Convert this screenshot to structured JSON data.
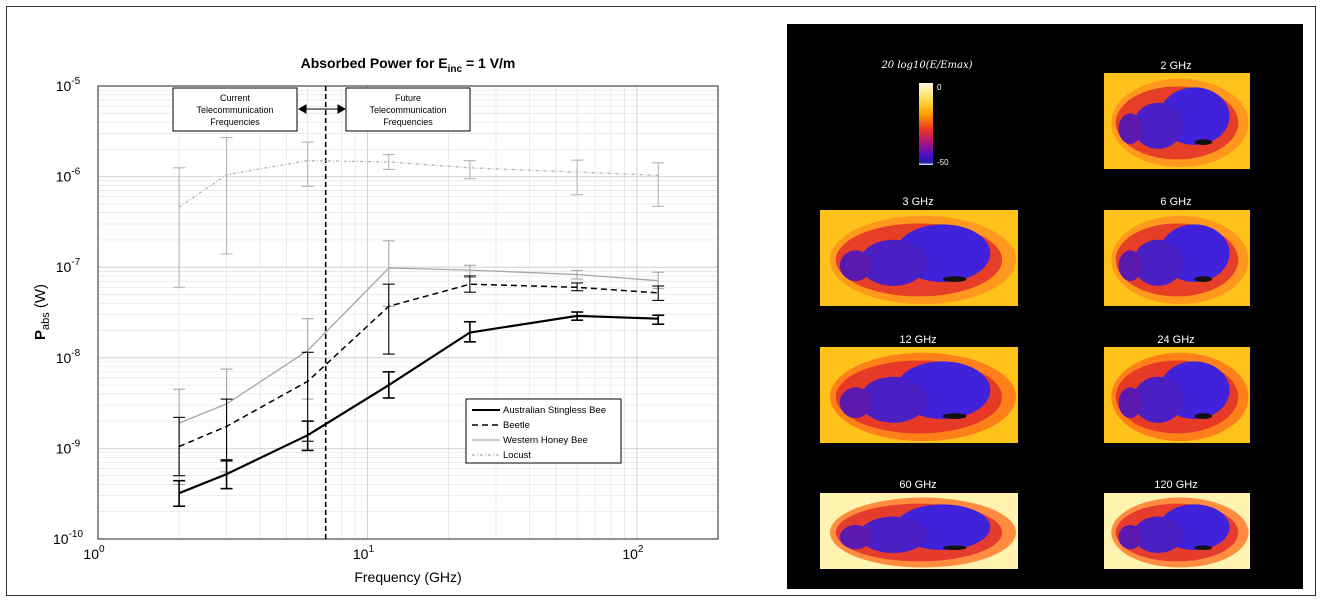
{
  "chart_data": {
    "type": "line",
    "title": "Absorbed Power for E",
    "title_sub": "inc",
    "title_tail": " = 1 V/m",
    "ylabel_main": "P",
    "ylabel_sub": "abs",
    "ylabel_tail": " (W)",
    "xlabel": "Frequency (GHz)",
    "x_scale": "log",
    "y_scale": "log",
    "xlim": [
      1,
      200
    ],
    "ylim": [
      1e-10,
      1e-05
    ],
    "x_ticks": [
      {
        "base": "10",
        "exp": "0",
        "value": 1
      },
      {
        "base": "10",
        "exp": "1",
        "value": 10
      },
      {
        "base": "10",
        "exp": "2",
        "value": 100
      }
    ],
    "y_ticks": [
      {
        "base": "10",
        "exp": "-10",
        "value": 1e-10
      },
      {
        "base": "10",
        "exp": "-9",
        "value": 1e-09
      },
      {
        "base": "10",
        "exp": "-8",
        "value": 1e-08
      },
      {
        "base": "10",
        "exp": "-7",
        "value": 1e-07
      },
      {
        "base": "10",
        "exp": "-6",
        "value": 1e-06
      },
      {
        "base": "10",
        "exp": "-5",
        "value": 1e-05
      }
    ],
    "grid": true,
    "legend_position": "bottom-right",
    "series": [
      {
        "name": "Australian Stingless Bee",
        "color": "#000000",
        "dash": "solid",
        "width": 2.2,
        "x": [
          2,
          3,
          6,
          12,
          24,
          60,
          120
        ],
        "y": [
          3.2e-10,
          5.2e-10,
          1.4e-09,
          5e-09,
          1.9e-08,
          2.9e-08,
          2.7e-08
        ],
        "err_low": [
          2.3e-10,
          3.6e-10,
          9.5e-10,
          3.6e-09,
          1.5e-08,
          2.6e-08,
          2.35e-08
        ],
        "err_high": [
          4.4e-10,
          7.3e-10,
          2e-09,
          7e-09,
          2.5e-08,
          3.2e-08,
          2.95e-08
        ]
      },
      {
        "name": "Beetle",
        "color": "#000000",
        "dash": "6,4",
        "width": 1.5,
        "x": [
          2,
          3,
          6,
          12,
          24,
          60,
          120
        ],
        "y": [
          1.05e-09,
          1.75e-09,
          5.5e-09,
          3.7e-08,
          6.5e-08,
          6e-08,
          5.2e-08
        ],
        "err_low": [
          5e-10,
          7.5e-10,
          1.2e-09,
          1.1e-08,
          5.3e-08,
          5.5e-08,
          4.3e-08
        ],
        "err_high": [
          2.2e-09,
          3.5e-09,
          1.15e-08,
          6.5e-08,
          8e-08,
          6.7e-08,
          6.2e-08
        ]
      },
      {
        "name": "Western Honey Bee",
        "color": "#a6a6a6",
        "dash": "solid",
        "width": 1.3,
        "x": [
          2,
          3,
          6,
          12,
          24,
          60,
          120
        ],
        "y": [
          1.9e-09,
          3.1e-09,
          1.2e-08,
          9.8e-08,
          9.3e-08,
          8.3e-08,
          7.1e-08
        ],
        "err_low": [
          4e-10,
          5.5e-10,
          3.5e-09,
          3.7e-08,
          7.7e-08,
          7.4e-08,
          5.8e-08
        ],
        "err_high": [
          4.5e-09,
          7.5e-09,
          2.7e-08,
          1.95e-07,
          1.05e-07,
          9.2e-08,
          8.8e-08
        ]
      },
      {
        "name": "Locust",
        "color": "#b4b4b4",
        "dash": "3,2,1,2",
        "width": 1.3,
        "x": [
          2,
          3,
          6,
          12,
          24,
          60,
          120
        ],
        "y": [
          4.6e-07,
          1.05e-06,
          1.5e-06,
          1.45e-06,
          1.25e-06,
          1.12e-06,
          1.03e-06
        ],
        "err_low": [
          6e-08,
          1.4e-07,
          7.8e-07,
          1.2e-06,
          9.5e-07,
          6.3e-07,
          4.7e-07
        ],
        "err_high": [
          1.25e-06,
          2.7e-06,
          2.4e-06,
          1.75e-06,
          1.5e-06,
          1.52e-06,
          1.42e-06
        ]
      }
    ],
    "vline_x": 7,
    "annotation_left": [
      "Current",
      "Telecommunication",
      "Frequencies"
    ],
    "annotation_right": [
      "Future",
      "Telecommunication",
      "Frequencies"
    ]
  },
  "field_panel": {
    "colorbar_title": "20 log10(E/Emax)",
    "colorbar_max": "0",
    "colorbar_min": "-50",
    "frequencies": [
      "2 GHz",
      "3 GHz",
      "6 GHz",
      "12 GHz",
      "24 GHz",
      "60 GHz",
      "120 GHz"
    ]
  }
}
